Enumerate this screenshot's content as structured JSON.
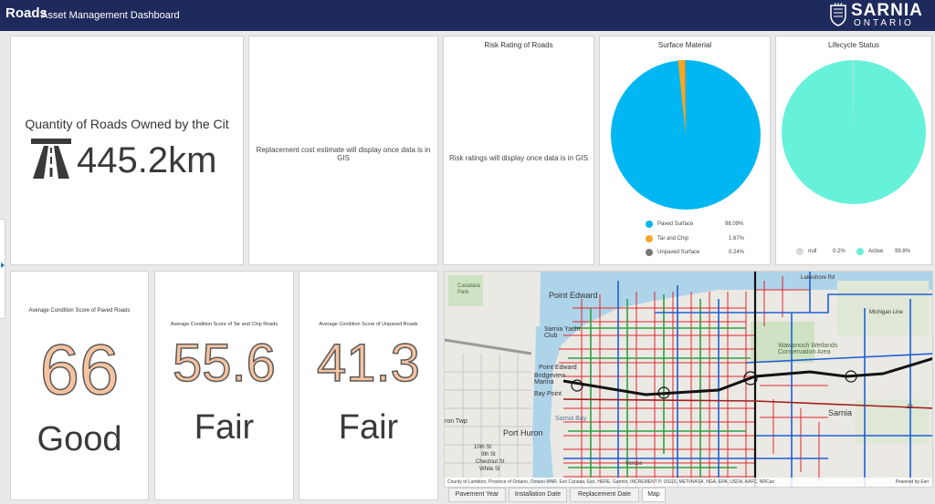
{
  "header": {
    "title": "Roads",
    "subtitle": "Asset Management Dashboard",
    "logo_word": "SARNIA",
    "logo_sub": "ONTARIO"
  },
  "quantity": {
    "label": "Quantity of Roads Owned by the Cit",
    "value": "445.2km",
    "icon": "road-icon"
  },
  "replacement": {
    "message": "Replacement cost estimate will display once data is in GIS"
  },
  "risk": {
    "title": "Risk Rating of Roads",
    "message": "Risk ratings will display once data is in GIS"
  },
  "surface": {
    "title": "Surface Material",
    "legend": [
      {
        "label": "Paved Surface",
        "pct": "98.09%",
        "color": "#00b7f2"
      },
      {
        "label": "Tar and Chip",
        "pct": "1.67%",
        "color": "#f5a623"
      },
      {
        "label": "Unpaved Surface",
        "pct": "0.24%",
        "color": "#777777"
      }
    ]
  },
  "lifecycle": {
    "title": "Lifecycle Status",
    "legend": [
      {
        "label": "null",
        "pct": "0.2%",
        "color": "#d9d9d9"
      },
      {
        "label": "Active",
        "pct": "99.8%",
        "color": "#66f2da"
      }
    ]
  },
  "paved": {
    "title": "Average Condition Score of Paved Roads",
    "value": "66",
    "rating": "Good"
  },
  "tarchip": {
    "title": "Average Condition Score of Tar and Chip Roads",
    "value": "55.6",
    "rating": "Fair"
  },
  "unpaved": {
    "title": "Average Condition Score of Unpaved Roads",
    "value": "41.3",
    "rating": "Fair"
  },
  "map": {
    "labels": {
      "point_edward": "Point Edward",
      "sarnia": "Sarnia",
      "port_huron": "Port Huron",
      "sarnia_yacht": "Sarnia Yacht Club",
      "point_edward_small": "Point Edward",
      "bridgeview": "Bridgeview Marina",
      "bay_point": "Bay Point",
      "sarnia_bay": "Sarnia Bay",
      "wawanosh": "Wawanosh Wetlands Conservation Area",
      "michigan_line": "Michigan Line",
      "canatara": "Canatara Park",
      "ron_twp": "ron Twp",
      "h_st": "10th St",
      "ninth": "9th St",
      "chestnut": "Chestnut St",
      "white": "White St",
      "vercoe": "Vercoe",
      "lakeshore_rd": "Lakeshore Rd",
      "twentytwo": "22"
    },
    "attribution": "County of Lambton, Province of Ontario, Ontario MNR, Esri Canada, Esri, HERE, Garmin, INCREMENT P, USGS, METI/NASA, NGA, EPA, USDA, AAFC, NRCan",
    "powered": "Powered by Esri"
  },
  "tabs": [
    {
      "label": "Pavement Year"
    },
    {
      "label": "Installation Date"
    },
    {
      "label": "Replacement Date"
    },
    {
      "label": "Map"
    }
  ]
}
